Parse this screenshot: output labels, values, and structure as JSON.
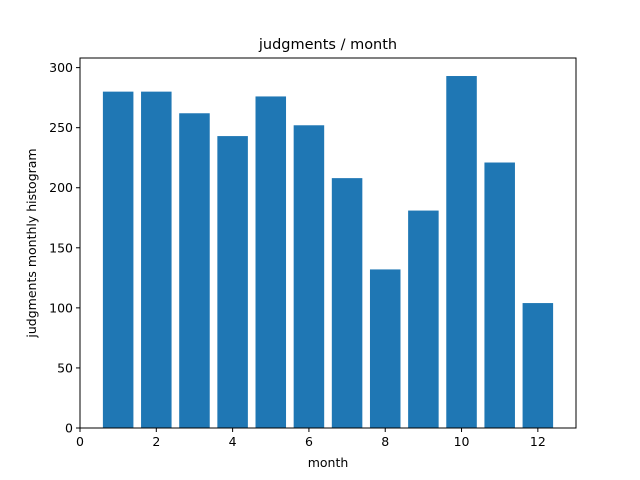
{
  "chart_data": {
    "type": "bar",
    "title": "judgments / month",
    "xlabel": "month",
    "ylabel": "judgments monthly histogram",
    "x": [
      1,
      2,
      3,
      4,
      5,
      6,
      7,
      8,
      9,
      10,
      11,
      12
    ],
    "values": [
      280,
      280,
      262,
      243,
      276,
      252,
      208,
      132,
      181,
      293,
      221,
      104
    ],
    "xlim": [
      0,
      13
    ],
    "ylim": [
      0,
      308
    ],
    "xticks": [
      0,
      2,
      4,
      6,
      8,
      10,
      12
    ],
    "yticks": [
      0,
      50,
      100,
      150,
      200,
      250,
      300
    ],
    "grid": false,
    "bar_color": "#1f77b4"
  }
}
